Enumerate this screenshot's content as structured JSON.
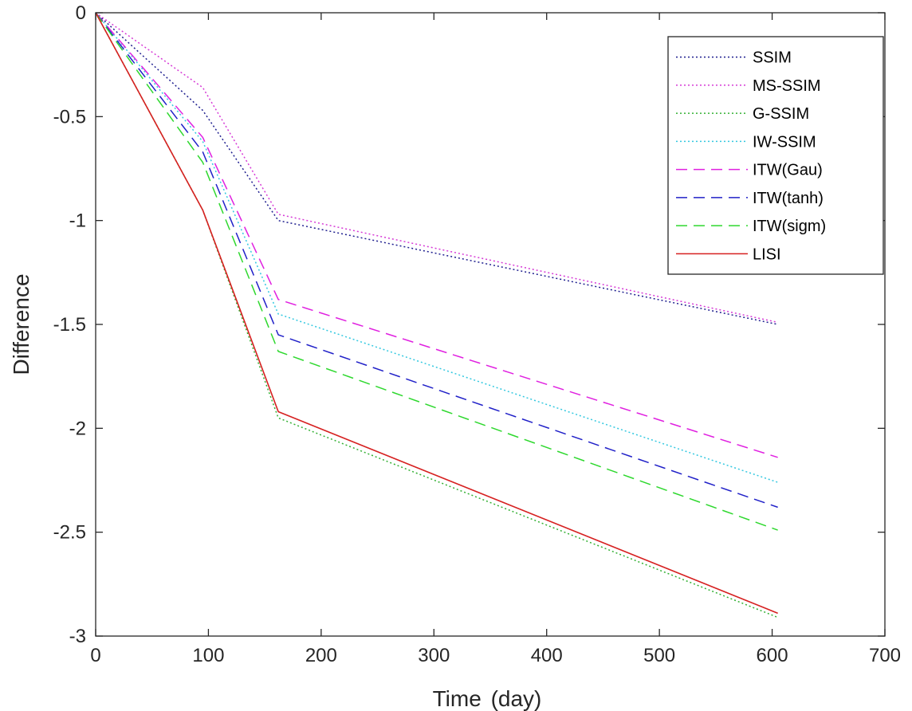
{
  "chart_data": {
    "type": "line",
    "xlabel": "Time",
    "xlabel_unit": "(day)",
    "ylabel": "Difference",
    "xlim": [
      0,
      700
    ],
    "ylim": [
      -3,
      0
    ],
    "xticks": [
      0,
      100,
      200,
      300,
      400,
      500,
      600,
      700
    ],
    "yticks": [
      0,
      -0.5,
      -1,
      -1.5,
      -2,
      -2.5,
      -3
    ],
    "x": [
      0,
      95,
      162,
      605
    ],
    "legend_position": "top-right",
    "grid": false,
    "series": [
      {
        "name": "SSIM",
        "values": [
          0,
          -0.47,
          -1.0,
          -1.5
        ],
        "color": "#1f1f8f",
        "style": "dotted"
      },
      {
        "name": "MS-SSIM",
        "values": [
          0,
          -0.36,
          -0.97,
          -1.49
        ],
        "color": "#d63ad6",
        "style": "dotted"
      },
      {
        "name": "G-SSIM",
        "values": [
          0,
          -0.95,
          -1.95,
          -2.91
        ],
        "color": "#33b033",
        "style": "dotted"
      },
      {
        "name": "IW-SSIM",
        "values": [
          0,
          -0.62,
          -1.45,
          -2.26
        ],
        "color": "#33c8e0",
        "style": "dotted"
      },
      {
        "name": "ITW(Gau)",
        "values": [
          0,
          -0.6,
          -1.38,
          -2.14
        ],
        "color": "#e020e0",
        "style": "dashed"
      },
      {
        "name": "ITW(tanh)",
        "values": [
          0,
          -0.67,
          -1.55,
          -2.38
        ],
        "color": "#2020c8",
        "style": "dashed"
      },
      {
        "name": "ITW(sigm)",
        "values": [
          0,
          -0.72,
          -1.63,
          -2.49
        ],
        "color": "#2ed82e",
        "style": "dashed"
      },
      {
        "name": "LISI",
        "values": [
          0,
          -0.95,
          -1.92,
          -2.89
        ],
        "color": "#d62020",
        "style": "solid"
      }
    ]
  }
}
